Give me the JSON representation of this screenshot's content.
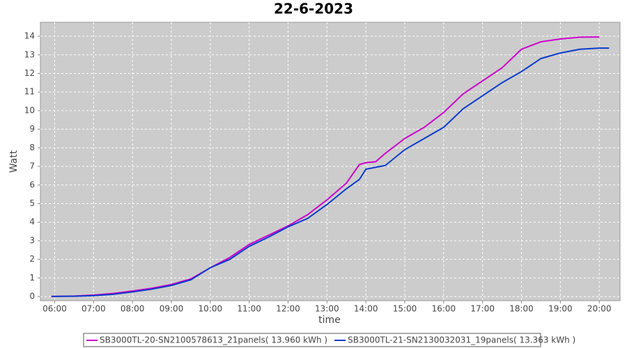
{
  "chart_data": {
    "type": "line",
    "title": "22-6-2023",
    "x_label": "time",
    "y_label": "Watt",
    "x": [
      "05:55",
      "06:30",
      "07:00",
      "07:30",
      "08:00",
      "08:30",
      "09:00",
      "09:30",
      "10:00",
      "10:30",
      "11:00",
      "11:30",
      "12:00",
      "12:30",
      "13:00",
      "13:30",
      "13:50",
      "14:00",
      "14:15",
      "14:30",
      "15:00",
      "15:30",
      "16:00",
      "16:30",
      "17:00",
      "17:30",
      "18:00",
      "18:30",
      "19:00",
      "19:30",
      "20:00",
      "20:15"
    ],
    "series": [
      {
        "name": "SB3000TL-20-SN2100578613_21panels( 13.960 kWh )",
        "color": "#cc00cc",
        "values": [
          0.01,
          0.03,
          0.08,
          0.17,
          0.3,
          0.45,
          0.65,
          0.95,
          1.55,
          2.1,
          2.8,
          3.3,
          3.8,
          4.4,
          5.2,
          6.1,
          7.1,
          7.2,
          7.25,
          7.7,
          8.5,
          9.1,
          9.9,
          10.9,
          11.6,
          12.3,
          13.3,
          13.7,
          13.85,
          13.95,
          13.96,
          null
        ]
      },
      {
        "name": "SB3000TL-21-SN2130032031_19panels( 13.363 kWh )",
        "color": "#0a3acc",
        "values": [
          0.01,
          0.02,
          0.05,
          0.12,
          0.25,
          0.4,
          0.6,
          0.9,
          1.55,
          2.0,
          2.7,
          3.2,
          3.75,
          4.2,
          4.95,
          5.8,
          6.3,
          6.85,
          6.95,
          7.05,
          7.9,
          8.5,
          9.1,
          10.1,
          10.8,
          11.5,
          12.1,
          12.8,
          13.1,
          13.3,
          13.36,
          13.36
        ]
      }
    ],
    "xlim": [
      "05:38",
      "20:32"
    ],
    "xticks": [
      "06:00",
      "07:00",
      "08:00",
      "09:00",
      "10:00",
      "11:00",
      "12:00",
      "13:00",
      "14:00",
      "15:00",
      "16:00",
      "17:00",
      "18:00",
      "19:00",
      "20:00"
    ],
    "ylim": [
      -0.22,
      14.75
    ],
    "yticks": [
      0,
      1,
      2,
      3,
      4,
      5,
      6,
      7,
      8,
      9,
      10,
      11,
      12,
      13,
      14
    ],
    "grid": true
  }
}
